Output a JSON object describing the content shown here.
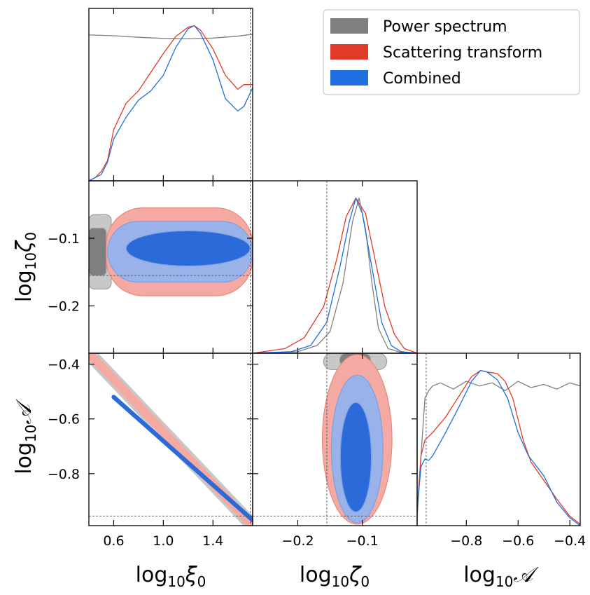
{
  "chart_data": {
    "type": "corner",
    "parameters": [
      {
        "key": "xi0",
        "label_base": "log",
        "label_sub": "10",
        "label_sym": "ξ",
        "label_symsub": "0",
        "range": [
          0.4,
          1.72
        ],
        "ticks": [
          0.6,
          1.0,
          1.4
        ],
        "tick_labels": [
          "0.6",
          "1.0",
          "1.4"
        ],
        "truth": 1.7
      },
      {
        "key": "zeta0",
        "label_base": "log",
        "label_sub": "10",
        "label_sym": "ζ",
        "label_symsub": "0",
        "range": [
          -0.27,
          -0.015
        ],
        "ticks": [
          -0.2,
          -0.1
        ],
        "tick_labels": [
          "−0.2",
          "−0.1"
        ],
        "truth": -0.155
      },
      {
        "key": "A",
        "label_base": "log",
        "label_sub": "10",
        "label_sym": "𝒜",
        "label_symsub": "",
        "range": [
          -0.99,
          -0.36
        ],
        "ticks": [
          -0.8,
          -0.6,
          -0.4
        ],
        "tick_labels": [
          "−0.8",
          "−0.6",
          "−0.4"
        ],
        "truth": -0.955
      }
    ],
    "legend": {
      "position": "top-right",
      "entries": [
        {
          "name": "Power spectrum",
          "color": "#808080"
        },
        {
          "name": "Scattering transform",
          "color": "#e03a28"
        },
        {
          "name": "Combined",
          "color": "#1f6fe0"
        }
      ]
    },
    "series": [
      {
        "name": "Power spectrum",
        "color": "#808080",
        "marginals": {
          "xi0": {
            "x": [
              0.4,
              0.6,
              0.8,
              1.0,
              1.2,
              1.4,
              1.6,
              1.72
            ],
            "y": [
              0.94,
              0.935,
              0.925,
              0.918,
              0.915,
              0.92,
              0.932,
              0.945
            ]
          },
          "zeta0": {
            "x": [
              -0.27,
              -0.2,
              -0.17,
              -0.15,
              -0.13,
              -0.115,
              -0.105,
              -0.095,
              -0.085,
              -0.075,
              -0.06,
              -0.04,
              -0.015
            ],
            "y": [
              0.0,
              0.01,
              0.05,
              0.14,
              0.45,
              0.85,
              1.0,
              0.8,
              0.45,
              0.16,
              0.03,
              0.005,
              0.0
            ]
          },
          "A": {
            "x": [
              -0.99,
              -0.975,
              -0.96,
              -0.945,
              -0.93,
              -0.9,
              -0.85,
              -0.8,
              -0.75,
              -0.7,
              -0.65,
              -0.6,
              -0.55,
              -0.5,
              -0.45,
              -0.4,
              -0.36
            ],
            "y": [
              0.05,
              0.45,
              0.82,
              0.87,
              0.9,
              0.92,
              0.88,
              0.93,
              0.9,
              0.92,
              0.87,
              0.93,
              0.89,
              0.91,
              0.88,
              0.92,
              0.9
            ]
          }
        },
        "contours": [
          {
            "pair": [
              "xi0",
              "zeta0"
            ],
            "level": "1sigma",
            "kind": "box",
            "x": [
              0.4,
              0.54
            ],
            "y": [
              -0.155,
              -0.085
            ]
          },
          {
            "pair": [
              "xi0",
              "zeta0"
            ],
            "level": "2sigma",
            "kind": "box",
            "x": [
              0.4,
              0.58
            ],
            "y": [
              -0.175,
              -0.065
            ]
          },
          {
            "pair": [
              "zeta0",
              "A"
            ],
            "level": "1sigma",
            "kind": "box",
            "x": [
              -0.135,
              -0.087
            ],
            "y": [
              -0.41,
              -0.36
            ]
          },
          {
            "pair": [
              "zeta0",
              "A"
            ],
            "level": "2sigma",
            "kind": "box",
            "x": [
              -0.16,
              -0.062
            ],
            "y": [
              -0.42,
              -0.36
            ]
          },
          {
            "pair": [
              "xi0",
              "A"
            ],
            "level": "2sigma",
            "kind": "band",
            "x0": 0.4,
            "y0": -0.36,
            "x1": 1.72,
            "y1": -0.99,
            "width": 0.05
          }
        ]
      },
      {
        "name": "Scattering transform",
        "color": "#e03a28",
        "marginals": {
          "xi0": {
            "x": [
              0.4,
              0.45,
              0.5,
              0.55,
              0.6,
              0.7,
              0.8,
              0.9,
              1.0,
              1.1,
              1.2,
              1.25,
              1.3,
              1.4,
              1.5,
              1.6,
              1.65,
              1.72
            ],
            "y": [
              0.0,
              0.02,
              0.06,
              0.13,
              0.33,
              0.5,
              0.58,
              0.7,
              0.82,
              0.93,
              0.99,
              1.0,
              0.97,
              0.85,
              0.68,
              0.59,
              0.62,
              0.62
            ]
          },
          "zeta0": {
            "x": [
              -0.27,
              -0.22,
              -0.19,
              -0.16,
              -0.14,
              -0.125,
              -0.11,
              -0.095,
              -0.08,
              -0.065,
              -0.05,
              -0.035,
              -0.015
            ],
            "y": [
              0.0,
              0.03,
              0.1,
              0.3,
              0.6,
              0.88,
              1.0,
              0.9,
              0.6,
              0.3,
              0.12,
              0.03,
              0.0
            ]
          },
          "A": {
            "x": [
              -0.99,
              -0.975,
              -0.96,
              -0.93,
              -0.88,
              -0.83,
              -0.78,
              -0.745,
              -0.72,
              -0.68,
              -0.65,
              -0.62,
              -0.58,
              -0.55,
              -0.5,
              -0.45,
              -0.4,
              -0.36
            ],
            "y": [
              0.1,
              0.45,
              0.55,
              0.6,
              0.7,
              0.83,
              0.96,
              1.0,
              0.99,
              0.98,
              0.93,
              0.82,
              0.55,
              0.41,
              0.29,
              0.17,
              0.06,
              0.01
            ]
          }
        },
        "contours": [
          {
            "pair": [
              "xi0",
              "zeta0"
            ],
            "level": "2sigma",
            "kind": "box",
            "x": [
              0.54,
              1.72
            ],
            "y": [
              -0.185,
              -0.055
            ]
          },
          {
            "pair": [
              "zeta0",
              "A"
            ],
            "level": "2sigma",
            "kind": "ellipse",
            "cx": -0.108,
            "cy": -0.675,
            "rx": 0.054,
            "ry": 0.31
          },
          {
            "pair": [
              "xi0",
              "A"
            ],
            "level": "2sigma",
            "kind": "band",
            "x0": 0.4,
            "y0": -0.36,
            "x1": 1.72,
            "y1": -0.99,
            "width": 0.032
          }
        ]
      },
      {
        "name": "Combined",
        "color": "#1f6fe0",
        "marginals": {
          "xi0": {
            "x": [
              0.4,
              0.5,
              0.55,
              0.6,
              0.7,
              0.8,
              0.9,
              1.0,
              1.1,
              1.2,
              1.25,
              1.3,
              1.4,
              1.5,
              1.6,
              1.65,
              1.72
            ],
            "y": [
              0.0,
              0.04,
              0.12,
              0.27,
              0.41,
              0.52,
              0.58,
              0.68,
              0.86,
              0.98,
              1.0,
              0.95,
              0.78,
              0.53,
              0.45,
              0.48,
              0.6
            ]
          },
          "zeta0": {
            "x": [
              -0.27,
              -0.21,
              -0.18,
              -0.155,
              -0.135,
              -0.12,
              -0.11,
              -0.1,
              -0.085,
              -0.07,
              -0.055,
              -0.04,
              -0.015
            ],
            "y": [
              0.0,
              0.01,
              0.05,
              0.2,
              0.55,
              0.85,
              1.0,
              0.9,
              0.55,
              0.2,
              0.05,
              0.01,
              0.0
            ]
          },
          "A": {
            "x": [
              -0.99,
              -0.975,
              -0.96,
              -0.945,
              -0.93,
              -0.88,
              -0.83,
              -0.78,
              -0.745,
              -0.72,
              -0.68,
              -0.64,
              -0.6,
              -0.56,
              -0.5,
              -0.45,
              -0.4,
              -0.36
            ],
            "y": [
              0.1,
              0.38,
              0.43,
              0.42,
              0.45,
              0.6,
              0.76,
              0.93,
              1.0,
              0.99,
              0.94,
              0.82,
              0.6,
              0.45,
              0.32,
              0.15,
              0.05,
              0.0
            ]
          }
        },
        "contours": [
          {
            "pair": [
              "xi0",
              "zeta0"
            ],
            "level": "2sigma",
            "kind": "box",
            "x": [
              0.55,
              1.72
            ],
            "y": [
              -0.165,
              -0.075
            ]
          },
          {
            "pair": [
              "xi0",
              "zeta0"
            ],
            "level": "1sigma",
            "kind": "ellipse",
            "cx": 1.2,
            "cy": -0.115,
            "rx": 0.5,
            "ry": 0.026
          },
          {
            "pair": [
              "zeta0",
              "A"
            ],
            "level": "2sigma",
            "kind": "ellipse",
            "cx": -0.108,
            "cy": -0.71,
            "rx": 0.04,
            "ry": 0.27
          },
          {
            "pair": [
              "zeta0",
              "A"
            ],
            "level": "1sigma",
            "kind": "ellipse",
            "cx": -0.11,
            "cy": -0.74,
            "rx": 0.024,
            "ry": 0.2
          },
          {
            "pair": [
              "xi0",
              "A"
            ],
            "level": "1sigma",
            "kind": "band",
            "x0": 0.6,
            "y0": -0.52,
            "x1": 1.72,
            "y1": -0.97,
            "width": 0.016
          }
        ]
      }
    ]
  }
}
